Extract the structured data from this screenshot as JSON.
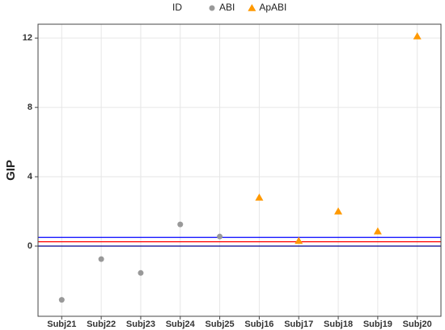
{
  "chart_data": {
    "type": "scatter",
    "y_label": "GIP",
    "legend_title": "ID",
    "legend_position": "top",
    "categories": [
      "Subj21",
      "Subj22",
      "Subj23",
      "Subj24",
      "Subj25",
      "Subj16",
      "Subj17",
      "Subj18",
      "Subj19",
      "Subj20"
    ],
    "series": [
      {
        "name": "ABI",
        "color": "#999999",
        "marker": "circle",
        "values": [
          -3.1,
          -0.75,
          -1.55,
          1.25,
          0.55,
          null,
          null,
          null,
          null,
          null
        ]
      },
      {
        "name": "ApABI",
        "color": "#ff9900",
        "marker": "triangle",
        "values": [
          null,
          null,
          null,
          null,
          null,
          2.8,
          0.3,
          2.0,
          0.85,
          12.1
        ]
      }
    ],
    "hlines": [
      {
        "value": 0,
        "color": "#00008b"
      },
      {
        "value": 0.25,
        "color": "#ff0000"
      },
      {
        "value": 0.5,
        "color": "#0000ff"
      }
    ],
    "ylim": [
      -4.05,
      12.8
    ],
    "yticks": [
      0,
      4,
      8,
      12
    ],
    "grid": true
  }
}
